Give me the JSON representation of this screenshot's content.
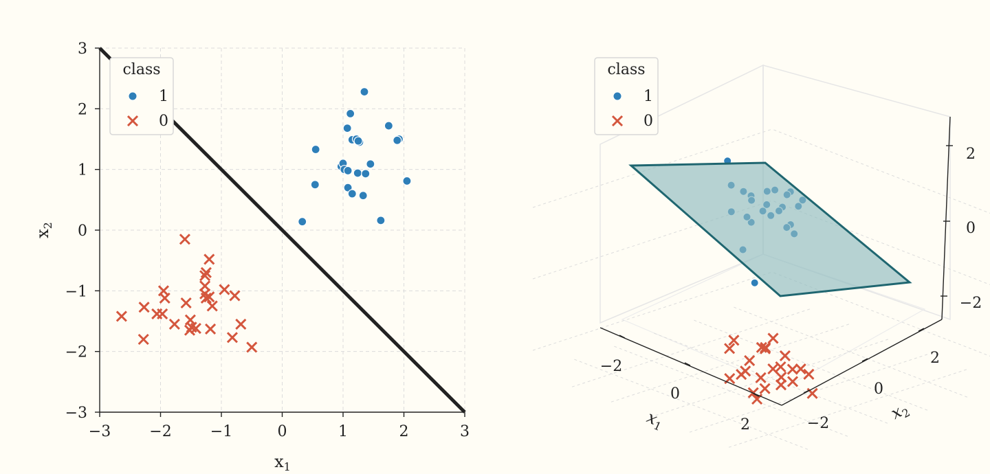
{
  "colors": {
    "background": "#fffdf5",
    "class1": "#2e7fb8",
    "class0": "#d4563d",
    "boundary": "#222222",
    "plane_fill": "#8fbbbf",
    "plane_edge": "#1f6670",
    "grid": "#dcdcdc"
  },
  "chart_data": [
    {
      "type": "scatter",
      "xlabel": "x",
      "xlabel_sub": "1",
      "ylabel": "x",
      "ylabel_sub": "2",
      "xlim": [
        -3,
        3
      ],
      "ylim": [
        -3,
        3
      ],
      "xticks": [
        -3,
        -2,
        -1,
        0,
        1,
        2,
        3
      ],
      "yticks": [
        -3,
        -2,
        -1,
        0,
        1,
        2,
        3
      ],
      "xtick_labels": [
        "−3",
        "−2",
        "−1",
        "0",
        "1",
        "2",
        "3"
      ],
      "ytick_labels": [
        "−3",
        "−2",
        "−1",
        "0",
        "1",
        "2",
        "3"
      ],
      "grid": true,
      "legend": {
        "title": "class",
        "placement": "top-left",
        "entries": [
          "1",
          "0"
        ]
      },
      "decision_boundary": {
        "equation": "x2 = -x1",
        "from": [
          -3,
          3
        ],
        "to": [
          3,
          -3
        ]
      },
      "series": [
        {
          "name": "1",
          "marker": "circle",
          "points": [
            [
              1.35,
              2.28
            ],
            [
              1.12,
              1.92
            ],
            [
              1.75,
              1.72
            ],
            [
              1.07,
              1.68
            ],
            [
              1.15,
              1.49
            ],
            [
              1.22,
              1.5
            ],
            [
              1.27,
              1.45
            ],
            [
              1.92,
              1.5
            ],
            [
              1.89,
              1.48
            ],
            [
              0.55,
              1.33
            ],
            [
              1.45,
              1.09
            ],
            [
              0.97,
              1.05
            ],
            [
              1.0,
              1.1
            ],
            [
              1.02,
              1.0
            ],
            [
              1.08,
              0.98
            ],
            [
              1.24,
              0.94
            ],
            [
              1.37,
              0.93
            ],
            [
              2.05,
              0.81
            ],
            [
              0.54,
              0.75
            ],
            [
              1.08,
              0.7
            ],
            [
              1.15,
              0.6
            ],
            [
              1.33,
              0.57
            ],
            [
              1.62,
              0.16
            ],
            [
              0.33,
              0.14
            ],
            [
              1.25,
              1.47
            ]
          ]
        },
        {
          "name": "0",
          "marker": "x",
          "points": [
            [
              -1.6,
              -0.15
            ],
            [
              -1.2,
              -0.48
            ],
            [
              -1.25,
              -0.7
            ],
            [
              -1.27,
              -0.75
            ],
            [
              -1.27,
              -0.92
            ],
            [
              -0.95,
              -0.98
            ],
            [
              -1.95,
              -1.0
            ],
            [
              -1.27,
              -1.05
            ],
            [
              -1.2,
              -1.1
            ],
            [
              -0.78,
              -1.08
            ],
            [
              -1.25,
              -1.12
            ],
            [
              -1.93,
              -1.12
            ],
            [
              -1.58,
              -1.2
            ],
            [
              -1.15,
              -1.25
            ],
            [
              -2.27,
              -1.27
            ],
            [
              -2.06,
              -1.38
            ],
            [
              -1.97,
              -1.38
            ],
            [
              -2.64,
              -1.42
            ],
            [
              -1.51,
              -1.48
            ],
            [
              -0.68,
              -1.55
            ],
            [
              -1.77,
              -1.55
            ],
            [
              -1.49,
              -1.6
            ],
            [
              -1.42,
              -1.62
            ],
            [
              -1.52,
              -1.65
            ],
            [
              -1.18,
              -1.63
            ],
            [
              -0.82,
              -1.77
            ],
            [
              -2.28,
              -1.8
            ],
            [
              -0.5,
              -1.93
            ]
          ]
        }
      ]
    },
    {
      "type": "scatter",
      "projection": "3d",
      "xlabel": "x",
      "xlabel_sub": "1",
      "ylabel": "x",
      "ylabel_sub": "2",
      "xticks": [
        "−2",
        "0",
        "2"
      ],
      "yticks": [
        "−2",
        "0",
        "2"
      ],
      "zticks": [
        "−2",
        "0",
        "2"
      ],
      "grid": true,
      "legend": {
        "title": "class",
        "placement": "top-left",
        "entries": [
          "1",
          "0"
        ]
      },
      "separating_plane": true,
      "series": [
        {
          "name": "1",
          "marker": "circle",
          "points_xyz": [
            [
              0.4,
              1.0,
              0.9
            ],
            [
              0.6,
              0.9,
              1.6
            ],
            [
              0.8,
              1.3,
              1.8
            ],
            [
              0.7,
              1.4,
              1.4
            ],
            [
              1.0,
              0.9,
              1.5
            ],
            [
              0.9,
              1.4,
              0.8
            ],
            [
              1.2,
              1.0,
              1.2
            ],
            [
              1.3,
              1.4,
              1.6
            ],
            [
              1.0,
              1.8,
              1.3
            ],
            [
              1.5,
              1.0,
              1.5
            ],
            [
              1.4,
              1.6,
              0.9
            ],
            [
              1.2,
              1.2,
              1.0
            ],
            [
              1.6,
              0.6,
              1.9
            ],
            [
              1.1,
              1.5,
              0.6
            ],
            [
              1.7,
              1.2,
              0.6
            ],
            [
              2.0,
              1.3,
              1.3
            ],
            [
              1.3,
              0.7,
              1.1
            ],
            [
              1.8,
              0.8,
              1.0
            ],
            [
              1.5,
              1.9,
              1.2
            ],
            [
              2.1,
              1.6,
              0.9
            ],
            [
              0.9,
              0.5,
              -0.5
            ],
            [
              2.0,
              0.9,
              2.3
            ],
            [
              1.2,
              0.5,
              0.3
            ],
            [
              1.6,
              1.5,
              1.4
            ]
          ]
        },
        {
          "name": "0",
          "marker": "x",
          "points_xyz": [
            [
              -1.2,
              -1.3,
              -0.8
            ],
            [
              -1.5,
              -1.4,
              -1.2
            ],
            [
              -1.0,
              -1.6,
              -1.4
            ],
            [
              -1.8,
              -1.2,
              -1.5
            ],
            [
              -1.3,
              -0.9,
              -1.1
            ],
            [
              -0.8,
              -1.3,
              -1.3
            ],
            [
              -1.6,
              -1.7,
              -1.6
            ],
            [
              -1.2,
              -1.9,
              -1.3
            ],
            [
              -1.4,
              -1.1,
              -1.8
            ],
            [
              -0.9,
              -1.0,
              -1.0
            ],
            [
              -2.0,
              -1.4,
              -1.0
            ],
            [
              -1.1,
              -1.5,
              -2.0
            ],
            [
              -1.7,
              -0.9,
              -1.3
            ],
            [
              -0.7,
              -1.7,
              -1.7
            ],
            [
              -1.5,
              -1.8,
              -1.9
            ],
            [
              -1.9,
              -1.6,
              -0.9
            ],
            [
              -0.6,
              -0.8,
              -1.2
            ],
            [
              -1.3,
              -1.2,
              -0.5
            ],
            [
              -0.9,
              -1.9,
              -0.7
            ],
            [
              -2.2,
              -1.1,
              -1.7
            ],
            [
              -1.6,
              -0.6,
              -1.6
            ],
            [
              -0.4,
              -1.3,
              -0.9
            ],
            [
              -1.0,
              -0.7,
              -1.9
            ],
            [
              -1.8,
              -2.0,
              -1.1
            ]
          ]
        }
      ]
    }
  ]
}
